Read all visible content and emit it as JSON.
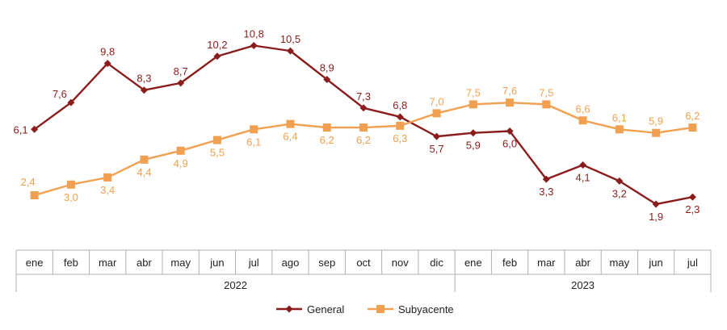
{
  "chart_data": {
    "type": "line",
    "categories": [
      "ene",
      "feb",
      "mar",
      "abr",
      "may",
      "jun",
      "jul",
      "ago",
      "sep",
      "oct",
      "nov",
      "dic",
      "ene",
      "feb",
      "mar",
      "abr",
      "may",
      "jun",
      "jul"
    ],
    "groups": [
      {
        "label": "2022",
        "start": 0,
        "end": 11
      },
      {
        "label": "2023",
        "start": 12,
        "end": 18
      }
    ],
    "series": [
      {
        "name": "General",
        "color": "#8b1c1c",
        "marker": "diamond",
        "values": [
          6.1,
          7.6,
          9.8,
          8.3,
          8.7,
          10.2,
          10.8,
          10.5,
          8.9,
          7.3,
          6.8,
          5.7,
          5.9,
          6.0,
          3.3,
          4.1,
          3.2,
          1.9,
          2.3
        ],
        "labels": [
          "6,1",
          "7,6",
          "9,8",
          "8,3",
          "8,7",
          "10,2",
          "10,8",
          "10,5",
          "8,9",
          "7,3",
          "6,8",
          "5,7",
          "5,9",
          "6,0",
          "3,3",
          "4,1",
          "3,2",
          "1,9",
          "2,3"
        ]
      },
      {
        "name": "Subyacente",
        "color": "#f0a050",
        "marker": "square",
        "values": [
          2.4,
          3.0,
          3.4,
          4.4,
          4.9,
          5.5,
          6.1,
          6.4,
          6.2,
          6.2,
          6.3,
          7.0,
          7.5,
          7.6,
          7.5,
          6.6,
          6.1,
          5.9,
          6.2
        ],
        "labels": [
          "2,4",
          "3,0",
          "3,4",
          "4,4",
          "4,9",
          "5,5",
          "6,1",
          "6,4",
          "6,2",
          "6,2",
          "6,3",
          "7,0",
          "7,5",
          "7,6",
          "7,5",
          "6,6",
          "6,1",
          "5,9",
          "6,2"
        ]
      }
    ],
    "title": "",
    "xlabel": "",
    "ylabel": "",
    "ylim": [
      0,
      12
    ],
    "grid": false,
    "legend": "bottom-center"
  }
}
